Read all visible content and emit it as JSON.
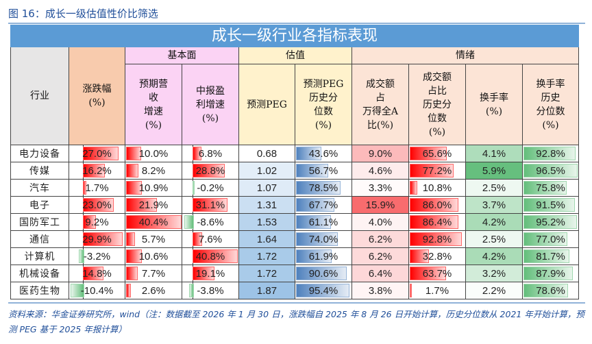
{
  "figure_title": "图 16：成长一级估值性价比筛选",
  "table_title": "成长一级行业各指标表现",
  "groups": {
    "fundamental": "基本面",
    "valuation": "估值",
    "sentiment": "情绪"
  },
  "headers": [
    "行业",
    "涨跌幅\n(%)",
    "预期营\n收\n增速\n(%)",
    "中报盈\n利增速\n(%)",
    "预测PEG",
    "预测PEG\n历史分\n位数\n(%)",
    "成交额\n占\n万得全A\n比(%)",
    "成交额\n占比\n历史分\n位数\n(%)",
    "换手率\n(%)",
    "换手率\n历史\n分位数\n(%)"
  ],
  "colors": {
    "header_blue": "#5b9bd5",
    "bar_red": "#ff0000",
    "bar_green": "#63be7b",
    "bar_blue": "#4f81bd",
    "scale_red": "#f8696b",
    "scale_green": "#63be7b",
    "scale_blue": "#9dc3e6"
  },
  "rows": [
    {
      "industry": "电力设备",
      "chg": 27.0,
      "rev": 10.0,
      "profit": 6.8,
      "peg": 0.68,
      "peg_pct": 43.6,
      "turnover_share": 9.0,
      "share_pct": 65.6,
      "turn": 4.1,
      "turn_pct": 92.8
    },
    {
      "industry": "传媒",
      "chg": 16.2,
      "rev": 8.2,
      "profit": 28.8,
      "peg": 1.02,
      "peg_pct": 56.7,
      "turnover_share": 4.6,
      "share_pct": 77.2,
      "turn": 5.9,
      "turn_pct": 96.5
    },
    {
      "industry": "汽车",
      "chg": 1.7,
      "rev": 10.9,
      "profit": -0.2,
      "peg": 1.07,
      "peg_pct": 78.5,
      "turnover_share": 3.3,
      "share_pct": 10.8,
      "turn": 2.5,
      "turn_pct": 75.8
    },
    {
      "industry": "电子",
      "chg": 23.0,
      "rev": 21.9,
      "profit": 31.1,
      "peg": 1.31,
      "peg_pct": 67.7,
      "turnover_share": 15.9,
      "share_pct": 86.0,
      "turn": 3.7,
      "turn_pct": 91.5
    },
    {
      "industry": "国防军工",
      "chg": 9.2,
      "rev": 40.4,
      "profit": -8.6,
      "peg": 1.53,
      "peg_pct": 61.1,
      "turnover_share": 4.0,
      "share_pct": 86.4,
      "turn": 4.2,
      "turn_pct": 95.2
    },
    {
      "industry": "通信",
      "chg": 29.9,
      "rev": 5.7,
      "profit": 7.6,
      "peg": 1.64,
      "peg_pct": 74.0,
      "turnover_share": 6.2,
      "share_pct": 92.8,
      "turn": 2.5,
      "turn_pct": 77.0
    },
    {
      "industry": "计算机",
      "chg": -3.2,
      "rev": 10.6,
      "profit": 40.8,
      "peg": 1.72,
      "peg_pct": 61.9,
      "turnover_share": 6.2,
      "share_pct": 32.8,
      "turn": 4.2,
      "turn_pct": 81.7
    },
    {
      "industry": "机械设备",
      "chg": 14.8,
      "rev": 7.7,
      "profit": 19.1,
      "peg": 1.72,
      "peg_pct": 90.6,
      "turnover_share": 6.4,
      "share_pct": 63.7,
      "turn": 3.2,
      "turn_pct": 87.9
    },
    {
      "industry": "医药生物",
      "chg": -10.4,
      "rev": 2.6,
      "profit": -3.8,
      "peg": 1.87,
      "peg_pct": 95.4,
      "turnover_share": 3.8,
      "share_pct": 1.7,
      "turn": 2.2,
      "turn_pct": 78.6
    }
  ],
  "source": "资料来源：华金证券研究所，wind（注：数据截至 2026 年 1 月 30 日，涨跌幅自 2025 年 8 月 26 日开始计算，历史分位数从 2021 年开始计算，预测 PEG 基于 2025 年报计算）"
}
